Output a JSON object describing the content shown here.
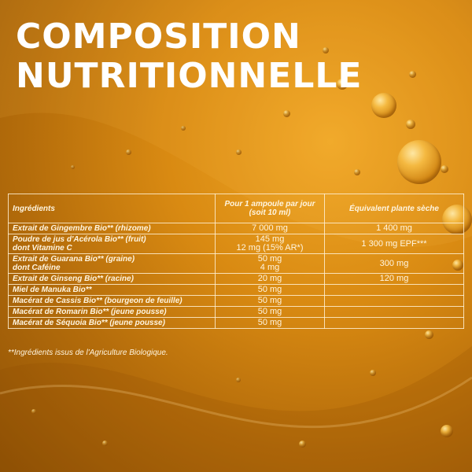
{
  "title": {
    "line1": "COMPOSITION",
    "line2": "NUTRITIONNELLE"
  },
  "table": {
    "headers": {
      "ingredients": "Ingrédients",
      "dose": "Pour 1 ampoule par jour (soit 10 ml)",
      "equivalent": "Équivalent plante sèche"
    },
    "rows": [
      {
        "ingredient": "Extrait de Gingembre Bio** (rhizome)",
        "dose": "7 000 mg",
        "equivalent": "1 400 mg"
      },
      {
        "ingredient": "Poudre de jus d'Acérola Bio** (fruit)",
        "ingredient_sub": "dont Vitamine C",
        "dose": "145 mg",
        "dose_sub": "12 mg (15% AR*)",
        "equivalent": "1 300 mg EPF***"
      },
      {
        "ingredient": "Extrait de Guarana Bio** (graine)",
        "ingredient_sub": "dont Caféine",
        "dose": "50 mg",
        "dose_sub": "4 mg",
        "equivalent": "300 mg"
      },
      {
        "ingredient": "Extrait de Ginseng Bio** (racine)",
        "dose": "20 mg",
        "equivalent": "120 mg"
      },
      {
        "ingredient": "Miel de Manuka Bio**",
        "dose": "50 mg",
        "equivalent": ""
      },
      {
        "ingredient": "Macérat de Cassis Bio** (bourgeon de feuille)",
        "dose": "50 mg",
        "equivalent": ""
      },
      {
        "ingredient": "Macérat de Romarin Bio** (jeune pousse)",
        "dose": "50 mg",
        "equivalent": ""
      },
      {
        "ingredient": "Macérat de Séquoia Bio** (jeune pousse)",
        "dose": "50 mg",
        "equivalent": ""
      }
    ]
  },
  "footnote": "**Ingrédients issus de l'Agriculture Biologique."
}
